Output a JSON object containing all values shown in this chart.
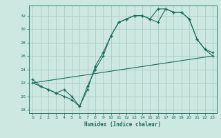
{
  "xlabel": "Humidex (Indice chaleur)",
  "bg_color": "#cce8e0",
  "grid_color": "#aaccC4",
  "line_color": "#1a6b5a",
  "xlim": [
    -0.5,
    23.5
  ],
  "ylim": [
    17.5,
    33.5
  ],
  "xticks": [
    0,
    1,
    2,
    3,
    4,
    5,
    6,
    7,
    8,
    9,
    10,
    11,
    12,
    13,
    14,
    15,
    16,
    17,
    18,
    19,
    20,
    21,
    22,
    23
  ],
  "yticks": [
    18,
    20,
    22,
    24,
    26,
    28,
    30,
    32
  ],
  "line1_x": [
    0,
    1,
    2,
    3,
    4,
    5,
    6,
    7,
    8,
    9,
    10,
    11,
    12,
    13,
    14,
    15,
    16,
    17,
    18,
    19,
    20,
    21,
    22,
    23
  ],
  "line1_y": [
    22.5,
    21.5,
    21.0,
    20.5,
    21.0,
    20.0,
    18.5,
    21.0,
    24.5,
    26.5,
    29.0,
    31.0,
    31.5,
    32.0,
    32.0,
    31.5,
    31.0,
    33.0,
    32.5,
    32.5,
    31.5,
    28.5,
    27.0,
    26.0
  ],
  "line2_x": [
    0,
    1,
    2,
    3,
    4,
    5,
    6,
    7,
    8,
    9,
    10,
    11,
    12,
    13,
    14,
    15,
    16,
    17,
    18,
    19,
    20,
    21,
    22,
    23
  ],
  "line2_y": [
    22.0,
    21.5,
    21.0,
    20.5,
    20.0,
    19.5,
    18.5,
    21.5,
    24.0,
    26.0,
    29.0,
    31.0,
    31.5,
    32.0,
    32.0,
    31.5,
    33.0,
    33.0,
    32.5,
    32.5,
    31.5,
    28.5,
    27.0,
    26.5
  ],
  "line3_x": [
    0,
    23
  ],
  "line3_y": [
    22.0,
    26.0
  ]
}
